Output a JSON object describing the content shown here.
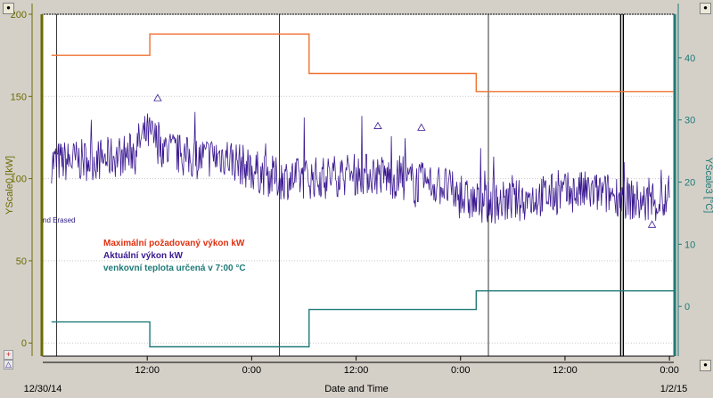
{
  "chart_data": {
    "type": "line",
    "xlabel": "Date and Time",
    "start_label": "12/30/14",
    "end_label": "1/2/15",
    "x_range_hours": [
      -12,
      60.5
    ],
    "x_ticks": [
      {
        "h": 0,
        "label": "12:00"
      },
      {
        "h": 12,
        "label": "0:00"
      },
      {
        "h": 24,
        "label": "12:00"
      },
      {
        "h": 36,
        "label": "0:00"
      },
      {
        "h": 48,
        "label": "12:00"
      },
      {
        "h": 60,
        "label": "0:00"
      }
    ],
    "vlines_hours": [
      15.2,
      39.2,
      54.4,
      54.7
    ],
    "left_axis": {
      "label": "YScale0 [kW]",
      "ylim": [
        -8,
        200
      ],
      "ticks": [
        0,
        50,
        100,
        150,
        200
      ],
      "color": "#6b6b00"
    },
    "right_axis": {
      "label": "YScale3 [°C]",
      "ylim": [
        -8,
        47
      ],
      "ticks": [
        0,
        10,
        20,
        30,
        40
      ],
      "color": "#1f7a78"
    },
    "series": [
      {
        "name": "Maximální požadovaný výkon kW",
        "color": "#f07030",
        "axis": "left",
        "step": true,
        "x": [
          -11,
          0.3,
          0.3,
          18.6,
          18.6,
          37.8,
          37.8,
          61
        ],
        "y": [
          175,
          175,
          188,
          188,
          164,
          164,
          153,
          153
        ]
      },
      {
        "name": "Aktuální výkon kW",
        "color": "#3a1890",
        "axis": "left",
        "noisy": true,
        "x": [
          -11,
          -5,
          -2,
          0,
          2,
          5,
          9,
          12,
          15,
          18,
          22,
          26,
          30,
          34,
          36,
          38,
          42,
          46,
          50,
          54,
          57,
          60
        ],
        "y": [
          110,
          112,
          115,
          128,
          118,
          112,
          114,
          105,
          100,
          100,
          102,
          103,
          98,
          96,
          88,
          85,
          86,
          90,
          92,
          90,
          85,
          86
        ]
      },
      {
        "name": "venkovní teplota určená v 7:00 °C",
        "color": "#1f7a78",
        "axis": "right",
        "step": true,
        "x": [
          -11,
          0.3,
          0.3,
          18.6,
          18.6,
          37.8,
          37.8,
          61
        ],
        "y": [
          -2.5,
          -2.5,
          -6.5,
          -6.5,
          -0.5,
          -0.5,
          2.5,
          2.5
        ]
      }
    ]
  },
  "annotation": "nd Erased",
  "markers": [
    "+",
    "△"
  ]
}
